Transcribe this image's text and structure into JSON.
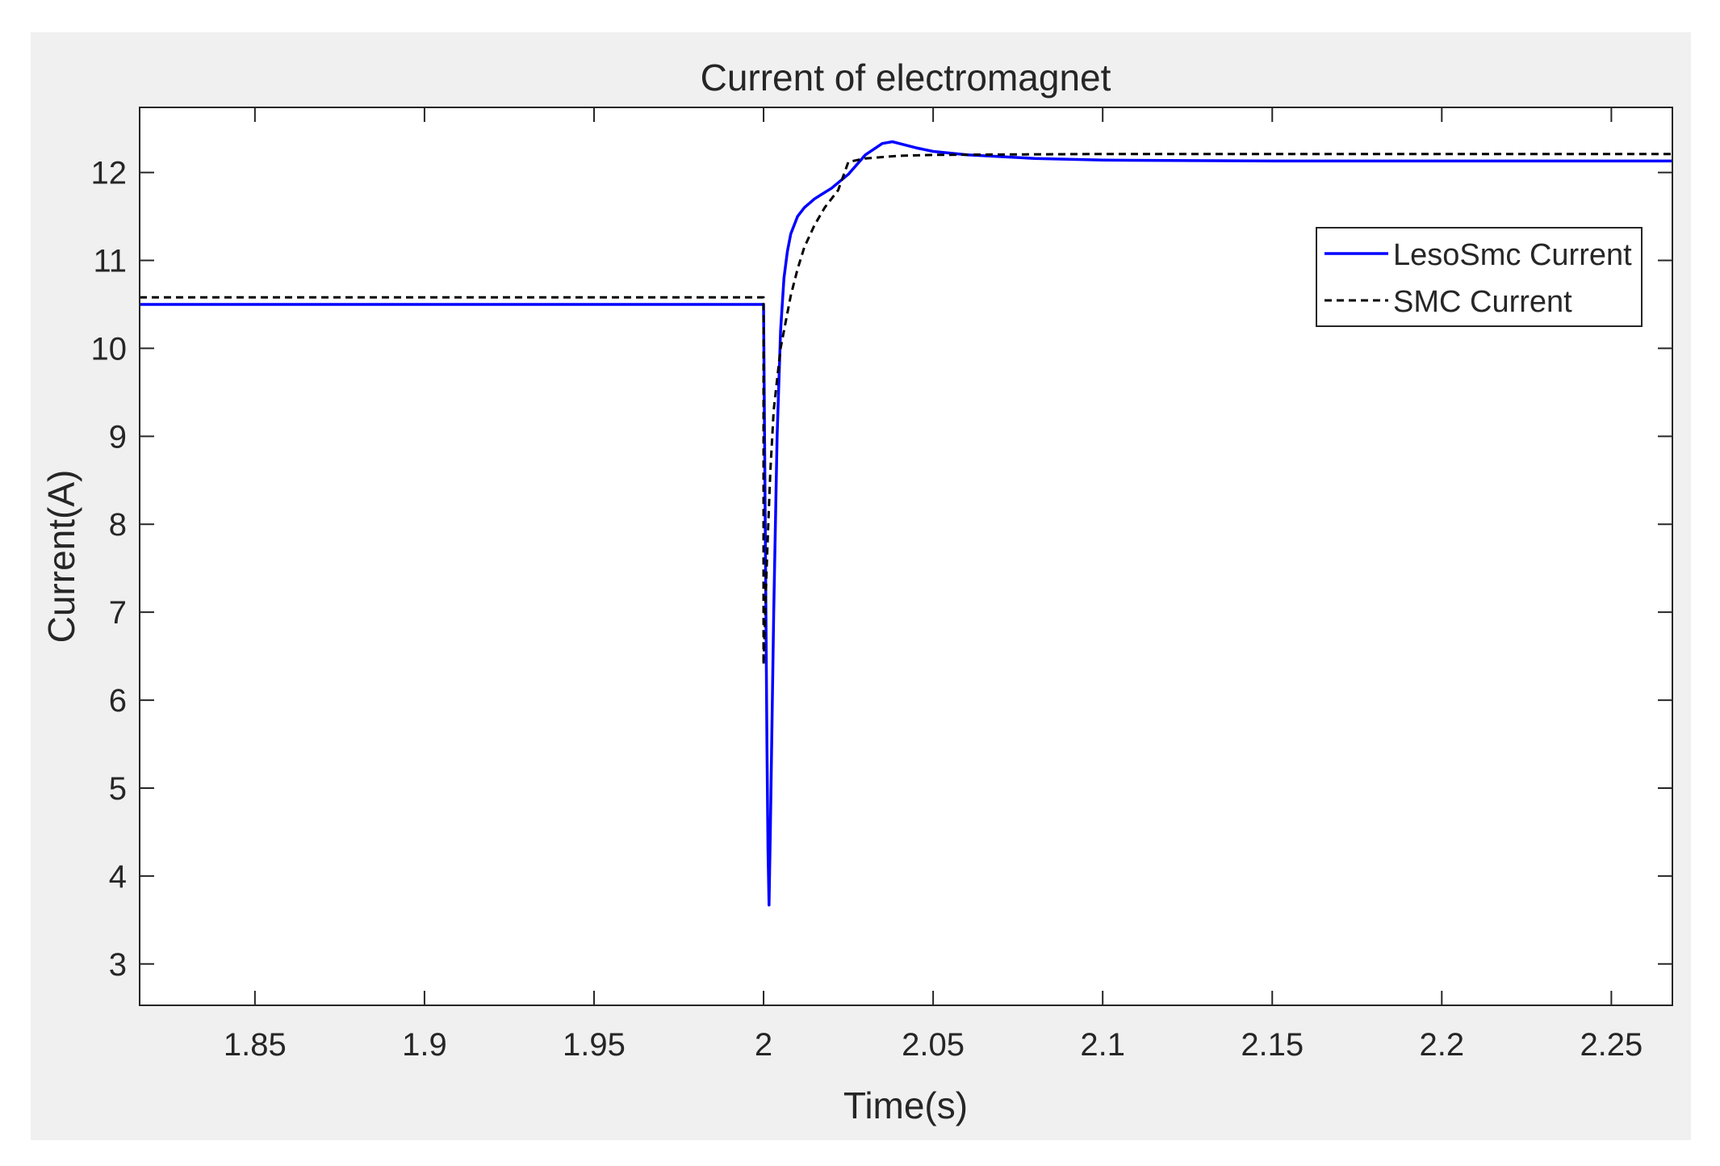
{
  "chart_data": {
    "type": "line",
    "title": "Current of electromagnet",
    "xlabel": "Time(s)",
    "ylabel": "Current(A)",
    "xlim": [
      1.816,
      2.268
    ],
    "ylim": [
      2.53,
      12.74
    ],
    "xticks": [
      1.85,
      1.9,
      1.95,
      2,
      2.05,
      2.1,
      2.15,
      2.2,
      2.25
    ],
    "xtick_labels": [
      "1.85",
      "1.9",
      "1.95",
      "2",
      "2.05",
      "2.1",
      "2.15",
      "2.2",
      "2.25"
    ],
    "yticks": [
      3,
      4,
      5,
      6,
      7,
      8,
      9,
      10,
      11,
      12
    ],
    "ytick_labels": [
      "3",
      "4",
      "5",
      "6",
      "7",
      "8",
      "9",
      "10",
      "11",
      "12"
    ],
    "grid": false,
    "legend_position": "upper-right",
    "series": [
      {
        "name": "LesoSmc Current",
        "color": "#0000ff",
        "style": "solid",
        "x": [
          1.816,
          2.0,
          2.0005,
          2.001,
          2.0013,
          2.0016,
          2.002,
          2.003,
          2.004,
          2.005,
          2.006,
          2.007,
          2.008,
          2.01,
          2.012,
          2.015,
          2.02,
          2.025,
          2.03,
          2.035,
          2.038,
          2.04,
          2.045,
          2.05,
          2.06,
          2.08,
          2.1,
          2.15,
          2.2,
          2.268
        ],
        "y": [
          10.5,
          10.5,
          8.0,
          5.5,
          4.3,
          3.67,
          4.5,
          7.0,
          9.0,
          10.2,
          10.8,
          11.1,
          11.3,
          11.5,
          11.6,
          11.7,
          11.82,
          11.98,
          12.2,
          12.33,
          12.35,
          12.33,
          12.28,
          12.24,
          12.2,
          12.16,
          12.14,
          12.13,
          12.13,
          12.13
        ]
      },
      {
        "name": "SMC Current",
        "color": "#000000",
        "style": "dashed",
        "x": [
          1.816,
          2.0,
          2.0,
          2.001,
          2.002,
          2.003,
          2.005,
          2.008,
          2.01,
          2.012,
          2.015,
          2.018,
          2.02,
          2.022,
          2.025,
          2.03,
          2.04,
          2.05,
          2.1,
          2.2,
          2.268
        ],
        "y": [
          10.58,
          10.58,
          6.4,
          7.6,
          8.6,
          9.3,
          10.0,
          10.6,
          10.9,
          11.15,
          11.4,
          11.6,
          11.7,
          11.8,
          12.12,
          12.16,
          12.19,
          12.2,
          12.21,
          12.21,
          12.21
        ]
      }
    ]
  }
}
